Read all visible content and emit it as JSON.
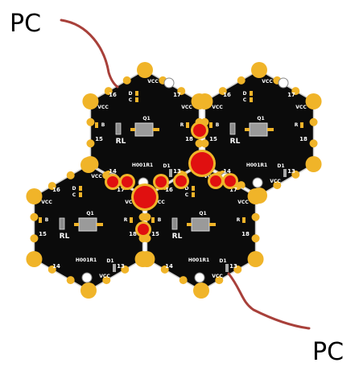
{
  "labels": {
    "pc_top": "PC",
    "pc_bottom": "PC"
  },
  "colors": {
    "board": "#0b0b0b",
    "gold": "#f0b429",
    "red": "#e01010",
    "wire": "#a8403a",
    "silk": "#ffffff",
    "edge": "#cfcfcf"
  },
  "modules": [
    {
      "name": "H001R1",
      "pins": [
        "16",
        "17",
        "18",
        "15",
        "14",
        "13"
      ],
      "vcc": [
        "VCC",
        "VCC",
        "VCC",
        "VCC"
      ],
      "parts": {
        "d": "D",
        "c": "C",
        "b": "B",
        "r": "R",
        "q": "Q1",
        "rl": "RL",
        "d1": "D1"
      }
    },
    {
      "name": "H001R1",
      "pins": [
        "16",
        "17",
        "18",
        "15",
        "14",
        "13"
      ],
      "vcc": [
        "VCC",
        "VCC",
        "VCC",
        "VCC"
      ],
      "parts": {
        "d": "D",
        "c": "C",
        "b": "B",
        "r": "R",
        "q": "Q1",
        "rl": "RL",
        "d1": "D1"
      }
    },
    {
      "name": "H001R1",
      "pins": [
        "16",
        "17",
        "18",
        "15",
        "14",
        "13"
      ],
      "vcc": [
        "VCC",
        "VCC",
        "VCC",
        "VCC"
      ],
      "parts": {
        "d": "D",
        "c": "C",
        "b": "B",
        "r": "R",
        "q": "Q1",
        "rl": "RL",
        "d1": "D1"
      }
    },
    {
      "name": "H001R1",
      "pins": [
        "16",
        "17",
        "18",
        "15",
        "14",
        "13"
      ],
      "vcc": [
        "VCC",
        "VCC",
        "VCC",
        "VCC"
      ],
      "parts": {
        "d": "D",
        "c": "C",
        "b": "B",
        "r": "R",
        "q": "Q1",
        "rl": "RL",
        "d1": "D1"
      }
    }
  ]
}
